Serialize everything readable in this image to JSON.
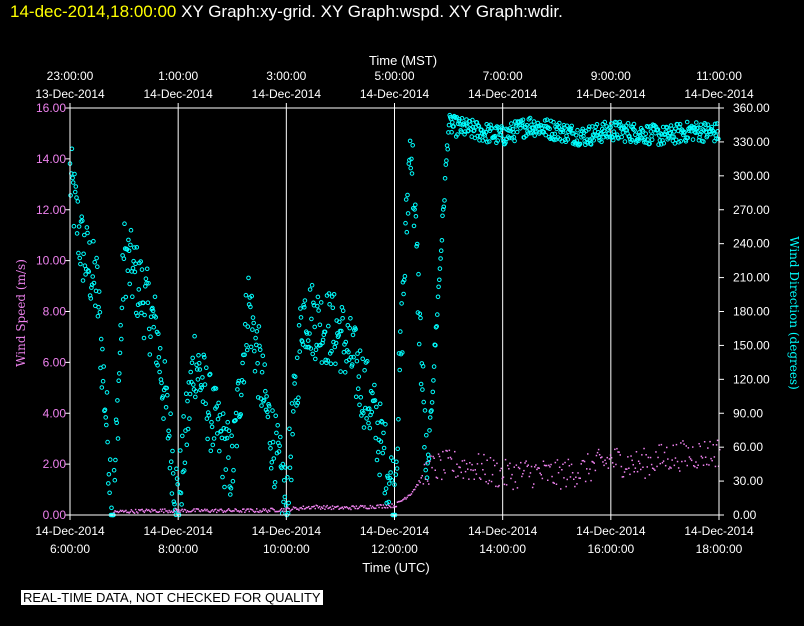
{
  "header": {
    "timestamp": "14-dec-2014,18:00:00",
    "graph_titles": "XY Graph:xy-grid.  XY Graph:wspd.  XY Graph:wdir."
  },
  "footer": {
    "qc_note": "REAL-TIME DATA, NOT CHECKED FOR QUALITY"
  },
  "colors": {
    "background": "#000000",
    "axis": "#ffffff",
    "timestamp": "#ffff00",
    "wind_speed": "#ee82ee",
    "wind_direction": "#00ffff",
    "grid": "#ffffff"
  },
  "chart_data": {
    "type": "scatter",
    "top_axis_title": "Time (MST)",
    "bottom_axis_title": "Time (UTC)",
    "y_left_label": "Wind Speed (m/s)",
    "y_right_label": "Wind Direction (degrees)",
    "x_range_utc_hours": [
      6,
      18
    ],
    "y_left_range": [
      0,
      16
    ],
    "y_right_range": [
      0,
      360
    ],
    "grid": "vertical lines at every 2 hours",
    "bottom_ticks": [
      {
        "hour": 6,
        "date": "14-Dec-2014",
        "time": "6:00:00"
      },
      {
        "hour": 8,
        "date": "14-Dec-2014",
        "time": "8:00:00"
      },
      {
        "hour": 10,
        "date": "14-Dec-2014",
        "time": "10:00:00"
      },
      {
        "hour": 12,
        "date": "14-Dec-2014",
        "time": "12:00:00"
      },
      {
        "hour": 14,
        "date": "14-Dec-2014",
        "time": "14:00:00"
      },
      {
        "hour": 16,
        "date": "14-Dec-2014",
        "time": "16:00:00"
      },
      {
        "hour": 18,
        "date": "14-Dec-2014",
        "time": "18:00:00"
      }
    ],
    "top_ticks": [
      {
        "hour": 6,
        "time": "23:00:00",
        "date": "13-Dec-2014"
      },
      {
        "hour": 8,
        "time": "1:00:00",
        "date": "14-Dec-2014"
      },
      {
        "hour": 10,
        "time": "3:00:00",
        "date": "14-Dec-2014"
      },
      {
        "hour": 12,
        "time": "5:00:00",
        "date": "14-Dec-2014"
      },
      {
        "hour": 14,
        "time": "7:00:00",
        "date": "14-Dec-2014"
      },
      {
        "hour": 16,
        "time": "9:00:00",
        "date": "14-Dec-2014"
      },
      {
        "hour": 18,
        "time": "11:00:00",
        "date": "14-Dec-2014"
      }
    ],
    "left_ticks": [
      "0.00",
      "2.00",
      "4.00",
      "6.00",
      "8.00",
      "10.00",
      "12.00",
      "14.00",
      "16.00"
    ],
    "right_ticks": [
      "0.00",
      "30.00",
      "60.00",
      "90.00",
      "120.00",
      "150.00",
      "180.00",
      "210.00",
      "240.00",
      "270.00",
      "300.00",
      "330.00",
      "360.00"
    ],
    "series": [
      {
        "name": "wspd",
        "axis": "left",
        "x": [
          6.8,
          7.5,
          8.0,
          8.5,
          9.0,
          9.5,
          10.0,
          10.5,
          11.0,
          11.5,
          12.0,
          12.3,
          12.6,
          13.0,
          13.5,
          14.0,
          14.5,
          15.0,
          15.5,
          16.0,
          16.5,
          17.0,
          17.5,
          18.0
        ],
        "values": [
          0.15,
          0.2,
          0.2,
          0.2,
          0.2,
          0.2,
          0.25,
          0.35,
          0.3,
          0.35,
          0.4,
          0.9,
          1.8,
          2.0,
          1.9,
          1.6,
          1.7,
          1.6,
          1.8,
          2.2,
          2.0,
          2.3,
          2.4,
          2.5
        ]
      },
      {
        "name": "wdir",
        "axis": "right",
        "x": [
          6.0,
          6.2,
          6.5,
          6.8,
          7.0,
          7.3,
          7.6,
          8.0,
          8.3,
          8.6,
          9.0,
          9.3,
          9.6,
          10.0,
          10.3,
          10.6,
          11.0,
          11.3,
          11.6,
          12.0,
          12.3,
          12.6,
          13.0,
          13.5,
          14.0,
          14.5,
          15.0,
          15.5,
          16.0,
          16.5,
          17.0,
          17.5,
          18.0
        ],
        "values": [
          300,
          240,
          200,
          0,
          230,
          200,
          160,
          10,
          140,
          90,
          40,
          190,
          100,
          10,
          180,
          170,
          160,
          130,
          90,
          20,
          340,
          30,
          345,
          340,
          335,
          345,
          340,
          335,
          340,
          338,
          335,
          340,
          338
        ]
      }
    ]
  }
}
